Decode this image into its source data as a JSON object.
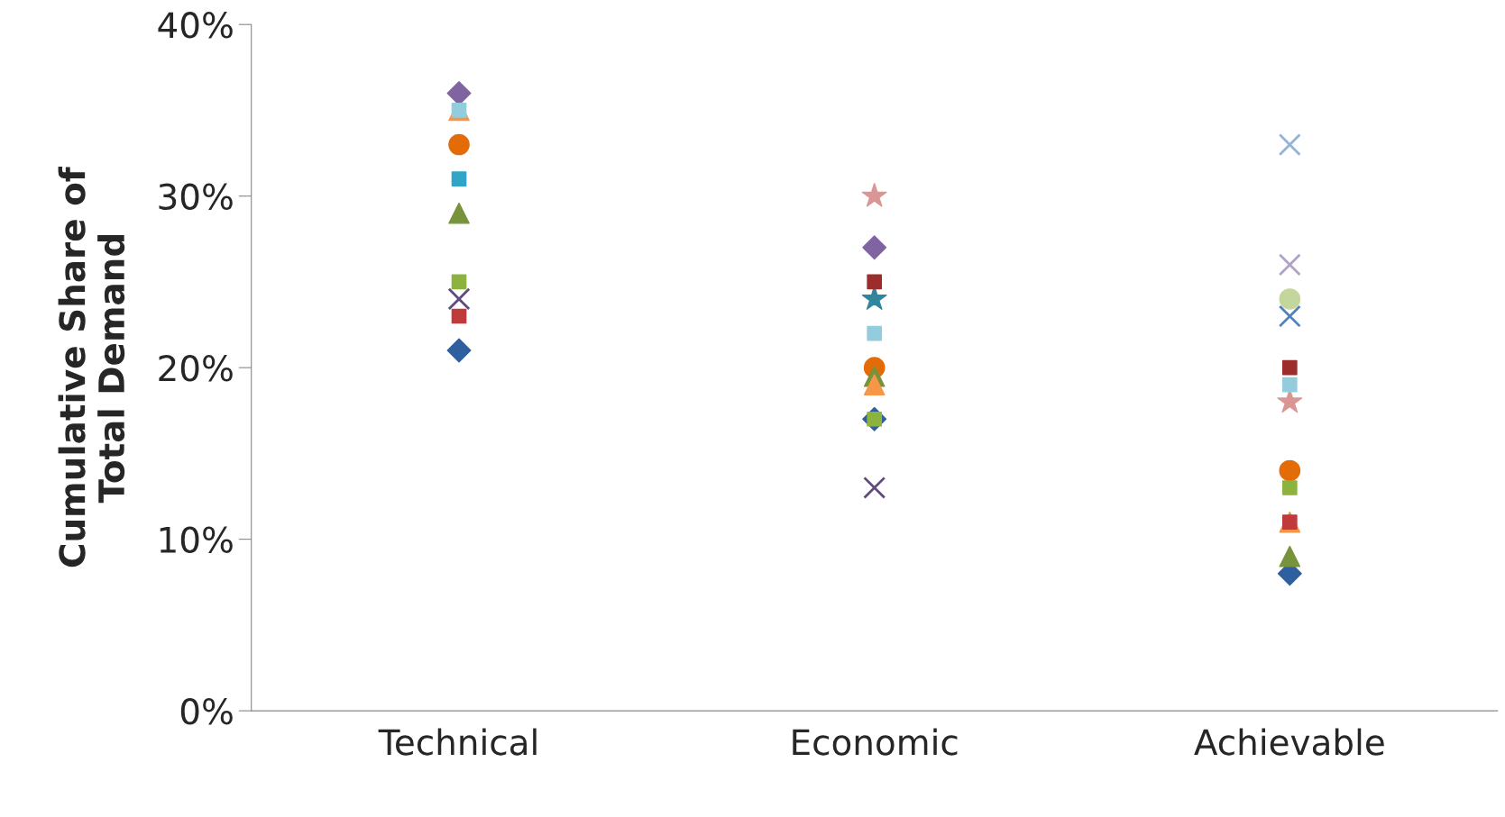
{
  "chart_data": {
    "type": "scatter",
    "ylabel": "Cumulative Share of\nTotal Demand",
    "categories": [
      "Technical",
      "Economic",
      "Achievable"
    ],
    "ylim": [
      0,
      40
    ],
    "yticks": [
      {
        "value": 0,
        "label": "0%"
      },
      {
        "value": 10,
        "label": "10%"
      },
      {
        "value": 20,
        "label": "20%"
      },
      {
        "value": 30,
        "label": "30%"
      },
      {
        "value": 40,
        "label": "40%"
      }
    ],
    "grid": false,
    "legend": false,
    "series": [
      {
        "color": "#2e5f9e",
        "marker": "diamond",
        "values": [
          21,
          17,
          8
        ]
      },
      {
        "color": "#c0393b",
        "marker": "square",
        "values": [
          23,
          null,
          11
        ]
      },
      {
        "color": "#8db33f",
        "marker": "square",
        "values": [
          25,
          17,
          13
        ]
      },
      {
        "color": "#604a7b",
        "marker": "cross",
        "values": [
          24,
          13,
          null
        ]
      },
      {
        "color": "#93cddd",
        "marker": "square",
        "values": [
          35,
          22,
          19
        ]
      },
      {
        "color": "#e36c09",
        "marker": "circle",
        "values": [
          33,
          20,
          14
        ]
      },
      {
        "color": "#31a5c8",
        "marker": "square",
        "values": [
          31,
          null,
          null
        ]
      },
      {
        "color": "#77933c",
        "marker": "triangle",
        "values": [
          29,
          19.5,
          9
        ]
      },
      {
        "color": "#f79646",
        "marker": "triangle",
        "values": [
          35,
          19,
          11
        ]
      },
      {
        "color": "#8064a2",
        "marker": "diamond",
        "values": [
          36,
          27,
          null
        ]
      },
      {
        "color": "#d99694",
        "marker": "star",
        "values": [
          null,
          30,
          18
        ]
      },
      {
        "color": "#9b2d2a",
        "marker": "square",
        "values": [
          null,
          25,
          20
        ]
      },
      {
        "color": "#31859c",
        "marker": "star",
        "values": [
          null,
          24,
          null
        ]
      },
      {
        "color": "#95b3d7",
        "marker": "cross",
        "values": [
          null,
          null,
          33
        ]
      },
      {
        "color": "#b3a2c7",
        "marker": "cross",
        "values": [
          null,
          null,
          26
        ]
      },
      {
        "color": "#c3d69b",
        "marker": "circle",
        "values": [
          null,
          null,
          24
        ]
      },
      {
        "color": "#4f81bd",
        "marker": "cross",
        "values": [
          null,
          null,
          23
        ]
      }
    ]
  }
}
